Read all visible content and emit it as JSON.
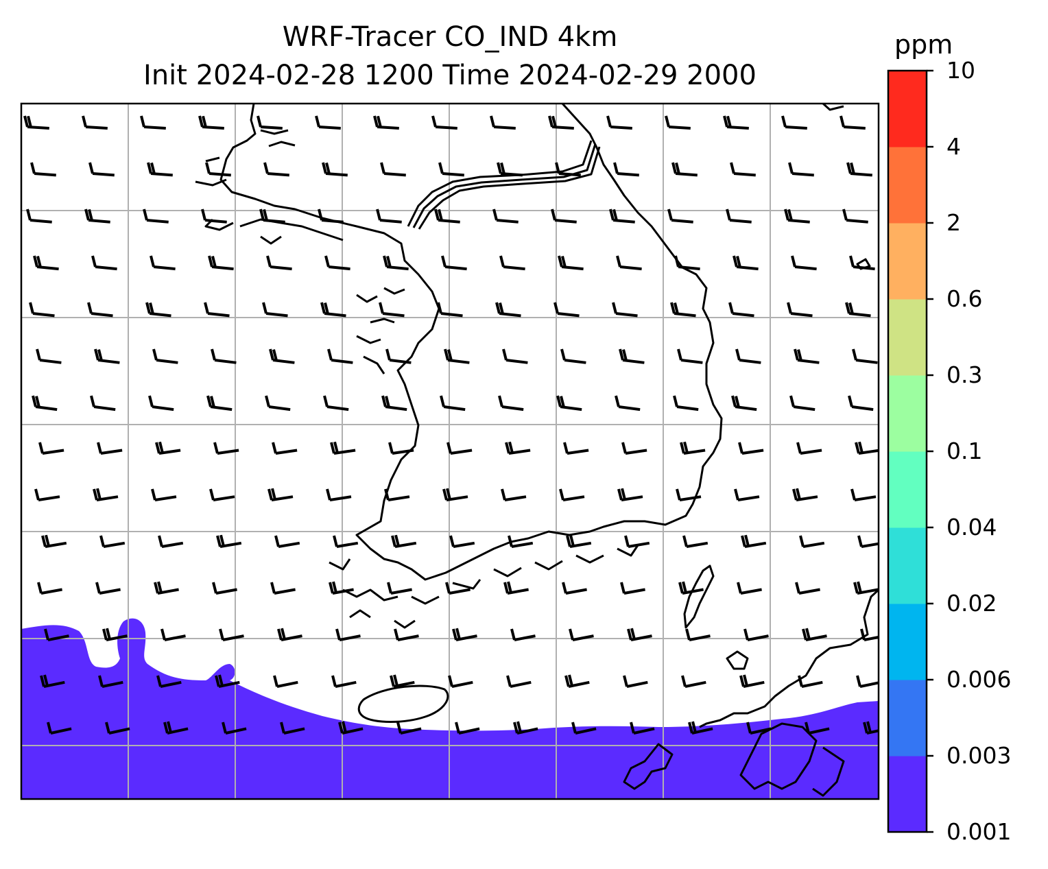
{
  "title_line1": "WRF-Tracer CO_IND 4km",
  "title_line2": "Init 2024-02-28 1200 Time 2024-02-29 2000",
  "colorbar": {
    "units": "ppm",
    "levels": [
      "0.001",
      "0.003",
      "0.006",
      "0.02",
      "0.04",
      "0.1",
      "0.3",
      "0.6",
      "2",
      "4",
      "10"
    ],
    "colors": [
      "#5b2bff",
      "#3476f3",
      "#00b5ef",
      "#2fdfd8",
      "#62ffc0",
      "#9cfea0",
      "#cfe384",
      "#ffb060",
      "#ff7239",
      "#ff2a1e"
    ]
  },
  "map": {
    "plume_color": "#5b2bff",
    "plume_level": "0.001",
    "gridline_color": "#b0b0b0",
    "wind_field": "westerly to west-southwesterly barbs, 5–15 kt"
  }
}
